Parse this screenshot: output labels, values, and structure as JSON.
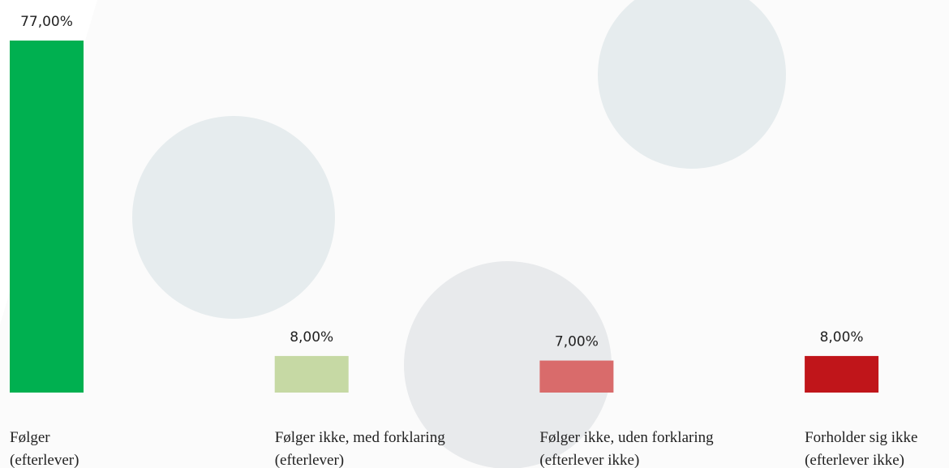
{
  "chart_data": {
    "type": "bar",
    "categories": [
      [
        "Følger",
        "(efterlever)"
      ],
      [
        "Følger ikke, med forklaring",
        "(efterlever)"
      ],
      [
        "Følger ikke, uden forklaring",
        "(efterlever ikke)"
      ],
      [
        "Forholder sig ikke",
        "(efterlever ikke)"
      ]
    ],
    "values": [
      77,
      8,
      7,
      8
    ],
    "value_labels": [
      "77,00%",
      "8,00%",
      "7,00%",
      "8,00%"
    ],
    "colors": [
      "#00b050",
      "#c6d9a4",
      "#d96b6b",
      "#c0151a"
    ]
  }
}
